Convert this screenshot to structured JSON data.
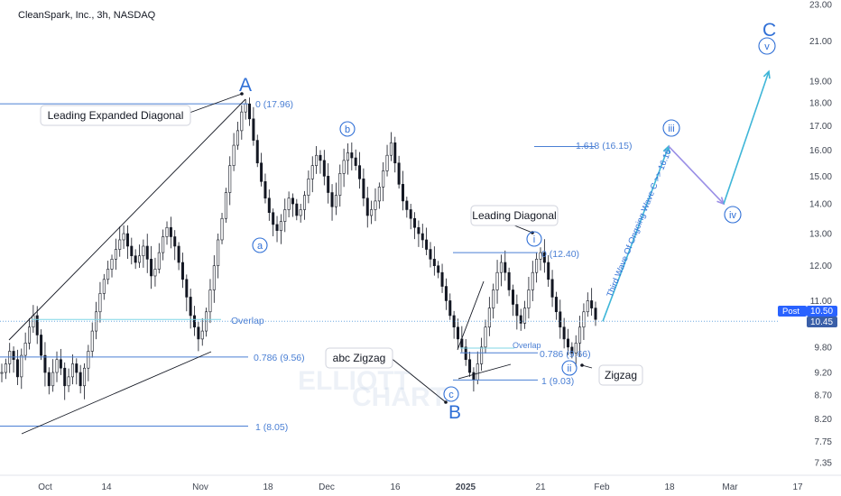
{
  "header": {
    "symbol_title": "CleanSpark, Inc., 3h, NASDAQ"
  },
  "watermark": {
    "line1": "ELLIOTT",
    "line2": "CHART"
  },
  "colors": {
    "wave_blue": "#2f6fd6",
    "fib_blue": "#4a7fd4",
    "price_line": "#6fa8e0",
    "candle": "#131722",
    "projection_cyan": "#3fb6d8",
    "projection_violet": "#9a8fe6",
    "badge_post": "#2962ff",
    "badge_price": "#3a5fa8"
  },
  "chart_data": {
    "type": "candlestick",
    "y_axis": {
      "scale": "log",
      "ticks": [
        "23.00",
        "21.00",
        "19.00",
        "18.00",
        "17.00",
        "16.00",
        "15.00",
        "14.00",
        "13.00",
        "12.00",
        "11.00",
        "9.80",
        "9.20",
        "8.70",
        "8.20",
        "7.75",
        "7.35"
      ]
    },
    "x_axis": {
      "ticks": [
        "Oct",
        "14",
        "Nov",
        "18",
        "Dec",
        "16",
        "2025",
        "21",
        "Feb",
        "18",
        "Mar",
        "17"
      ]
    },
    "price_series": [
      9.2,
      9.4,
      9.7,
      9.5,
      9.1,
      9.6,
      9.9,
      10.3,
      10.6,
      10.1,
      9.6,
      9.2,
      8.9,
      9.2,
      9.5,
      9.3,
      8.9,
      9.1,
      9.4,
      9.2,
      8.9,
      9.3,
      9.7,
      10.2,
      10.7,
      11.2,
      11.6,
      11.9,
      12.2,
      12.5,
      12.8,
      13.0,
      12.6,
      12.3,
      12.1,
      12.3,
      12.6,
      12.2,
      11.7,
      11.9,
      12.4,
      12.9,
      13.2,
      12.9,
      12.6,
      12.1,
      11.6,
      11.1,
      10.6,
      10.3,
      10.0,
      10.2,
      10.7,
      11.3,
      12.0,
      12.8,
      13.5,
      14.4,
      15.4,
      16.2,
      16.8,
      17.6,
      17.96,
      17.3,
      16.4,
      15.5,
      14.8,
      14.2,
      13.7,
      13.3,
      13.1,
      13.4,
      13.8,
      14.2,
      14.0,
      13.6,
      13.8,
      14.3,
      14.9,
      15.4,
      15.8,
      15.6,
      15.0,
      14.4,
      13.9,
      14.3,
      15.1,
      15.6,
      15.9,
      15.7,
      15.4,
      14.9,
      14.2,
      13.6,
      13.8,
      14.1,
      14.6,
      15.2,
      15.8,
      16.3,
      15.5,
      14.7,
      14.1,
      13.8,
      13.5,
      13.2,
      13.0,
      12.8,
      12.5,
      12.2,
      12.0,
      11.8,
      11.4,
      11.0,
      10.6,
      10.3,
      10.0,
      9.8,
      9.5,
      9.2,
      9.03,
      9.4,
      9.8,
      10.3,
      10.8,
      11.3,
      11.8,
      12.1,
      11.8,
      11.3,
      10.9,
      10.6,
      10.4,
      10.8,
      11.3,
      11.8,
      12.2,
      12.4,
      12.1,
      11.6,
      11.1,
      10.7,
      10.3,
      10.0,
      9.8,
      9.66,
      9.9,
      10.3,
      10.7,
      11.0,
      10.8,
      10.5
    ],
    "fib_levels": [
      {
        "label": "0 (17.96)",
        "value": 17.96
      },
      {
        "label": "0.786 (9.56)",
        "value": 9.56
      },
      {
        "label": "1 (8.05)",
        "value": 8.05
      },
      {
        "label": "1.618 (16.15)",
        "value": 16.15
      },
      {
        "label": "0 (12.40)",
        "value": 12.4
      },
      {
        "label": "0.786 (9.66)",
        "value": 9.66
      },
      {
        "label": "1 (9.03)",
        "value": 9.03
      }
    ],
    "overlap_labels": [
      "Overlap",
      "Overlap"
    ],
    "waves": {
      "A": "A",
      "B": "B",
      "C": "C",
      "a": "a",
      "b": "b",
      "c": "c",
      "i": "i",
      "ii": "ii",
      "iii": "iii",
      "iv": "iv",
      "v": "v"
    },
    "annotations": {
      "leading_expanded_diagonal": "Leading Expanded Diagonal",
      "abc_zigzag": "abc Zigzag",
      "leading_diagonal": "Leading Diagonal",
      "zigzag": "Zigzag",
      "third_wave_note": "Third Wave Of Ongoing Wave C >> 16.16"
    },
    "last_price": {
      "badge": "Post",
      "value": "10.50",
      "close": "10.45",
      "value_num": 10.5,
      "close_num": 10.45
    },
    "projection": [
      {
        "wave": "ii",
        "value": 10.45
      },
      {
        "wave": "iii",
        "value": 16.16
      },
      {
        "wave": "iv",
        "value": 14.0
      },
      {
        "wave": "v",
        "value": 20.0
      }
    ]
  }
}
